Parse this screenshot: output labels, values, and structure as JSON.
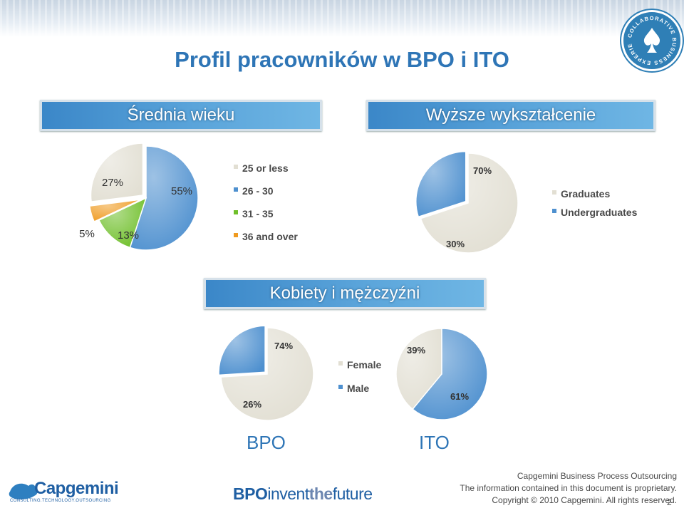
{
  "title": "Profil pracowników w BPO i ITO",
  "banners": {
    "age": "Średnia wieku",
    "education": "Wyższe wykształcenie",
    "gender": "Kobiety i mężczyźni"
  },
  "regions": {
    "bpo": "BPO",
    "ito": "ITO"
  },
  "colors": {
    "light": "#e2dfd3",
    "blue": "#4e90cf",
    "green": "#6fbf2a",
    "orange": "#ef9a1f",
    "title": "#2e75b6"
  },
  "chart_data": [
    {
      "type": "pie",
      "name": "age",
      "series": [
        {
          "name": "25 or less",
          "value": 27,
          "label": "27%",
          "color": "#e2dfd3"
        },
        {
          "name": "26 - 30",
          "value": 55,
          "label": "55%",
          "color": "#4e90cf"
        },
        {
          "name": "31 - 35",
          "value": 13,
          "label": "13%",
          "color": "#6fbf2a"
        },
        {
          "name": "36 and over",
          "value": 5,
          "label": "5%",
          "color": "#ef9a1f"
        }
      ]
    },
    {
      "type": "pie",
      "name": "education",
      "series": [
        {
          "name": "Graduates",
          "value": 70,
          "label": "70%",
          "color": "#e2dfd3"
        },
        {
          "name": "Undergraduates",
          "value": 30,
          "label": "30%",
          "color": "#4e90cf"
        }
      ]
    },
    {
      "type": "pie",
      "name": "gender-bpo",
      "series": [
        {
          "name": "Female",
          "value": 74,
          "label": "74%",
          "color": "#e2dfd3"
        },
        {
          "name": "Male",
          "value": 26,
          "label": "26%",
          "color": "#4e90cf"
        }
      ]
    },
    {
      "type": "pie",
      "name": "gender-ito",
      "series": [
        {
          "name": "Female",
          "value": 39,
          "label": "39%",
          "color": "#e2dfd3"
        },
        {
          "name": "Male",
          "value": 61,
          "label": "61%",
          "color": "#4e90cf"
        }
      ]
    }
  ],
  "legends": {
    "age": [
      "25 or less",
      "26 - 30",
      "31 - 35",
      "36 and over"
    ],
    "education": [
      "Graduates",
      "Undergraduates"
    ],
    "gender": [
      "Female",
      "Male"
    ]
  },
  "footer": {
    "logo_name": "Capgemini",
    "logo_tagline": "CONSULTING.TECHNOLOGY.OUTSOURCING",
    "bpo_logo": {
      "part1": "BPO",
      "part2": "invent",
      "part3": "the",
      "part4": "future"
    },
    "line1": "Capgemini Business Process Outsourcing",
    "line2": "The information contained in this document is proprietary.",
    "line3": "Copyright © 2010 Capgemini. All rights reserved.",
    "page": "2"
  },
  "seal_text": "COLLABORATIVE BUSINESS EXPERIENCE"
}
